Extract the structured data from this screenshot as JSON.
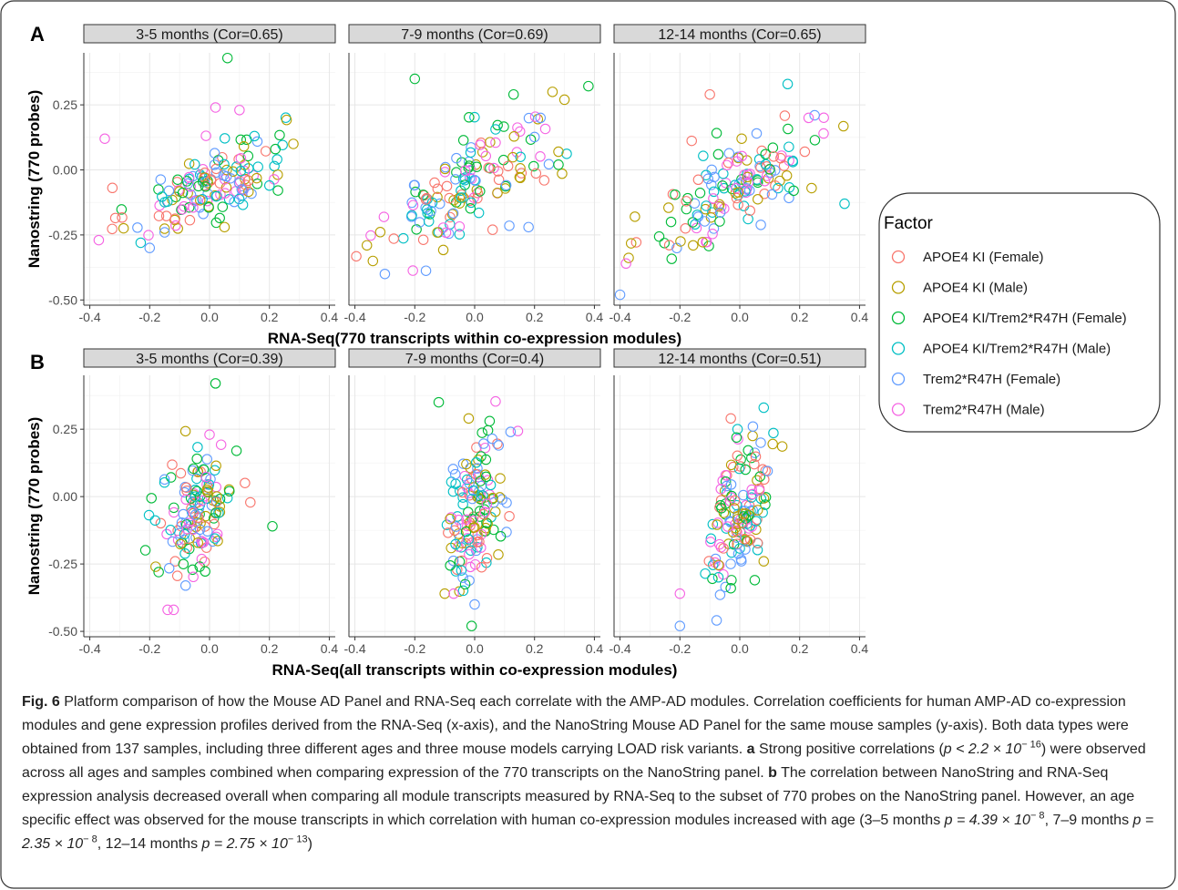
{
  "panels": [
    {
      "label": "A",
      "xlabel": "RNA-Seq(770 transcripts within co-expression modules)",
      "ylabel": "Nanostring (770 probes)",
      "facets": [
        {
          "title": "3-5 months (Cor=0.65)"
        },
        {
          "title": "7-9 months (Cor=0.69)"
        },
        {
          "title": "12-14 months (Cor=0.65)"
        }
      ]
    },
    {
      "label": "B",
      "xlabel": "RNA-Seq(all transcripts within co-expression modules)",
      "ylabel": "Nanostring (770 probes)",
      "facets": [
        {
          "title": "3-5 months (Cor=0.39)"
        },
        {
          "title": "7-9 months (Cor=0.4)"
        },
        {
          "title": "12-14 months (Cor=0.51)"
        }
      ]
    }
  ],
  "legend": {
    "title": "Factor",
    "items": [
      {
        "label": "APOE4 KI (Female)",
        "color": "#F8766D"
      },
      {
        "label": "APOE4 KI (Male)",
        "color": "#B79F00"
      },
      {
        "label": "APOE4 KI/Trem2*R47H (Female)",
        "color": "#00BA38"
      },
      {
        "label": "APOE4 KI/Trem2*R47H (Male)",
        "color": "#00BFC4"
      },
      {
        "label": "Trem2*R47H (Female)",
        "color": "#619CFF"
      },
      {
        "label": "Trem2*R47H (Male)",
        "color": "#F564E3"
      }
    ]
  },
  "chart_data": [
    {
      "type": "scatter",
      "panel": "A",
      "xlim": [
        -0.42,
        0.42
      ],
      "ylim": [
        -0.52,
        0.45
      ],
      "xticks": [
        "-0.4",
        "-0.2",
        "0.0",
        "0.2",
        "0.4"
      ],
      "yticks": [
        "-0.50",
        "-0.25",
        "0.00",
        "0.25"
      ],
      "grid": true,
      "legend_position": "right",
      "facets": [
        {
          "cor": 0.65,
          "points": [
            [
              0.06,
              0.43,
              2
            ],
            [
              -0.35,
              0.12,
              5
            ],
            [
              0.02,
              0.24,
              5
            ],
            [
              0.1,
              0.23,
              5
            ],
            [
              0.28,
              0.1,
              1
            ],
            [
              -0.37,
              -0.27,
              5
            ],
            [
              -0.23,
              -0.28,
              3
            ],
            [
              -0.2,
              -0.3,
              4
            ],
            [
              -0.15,
              -0.24,
              4
            ],
            [
              0.05,
              -0.22,
              1
            ],
            [
              0.2,
              -0.06,
              3
            ],
            [
              0.22,
              0.08,
              2
            ],
            [
              0.15,
              0.13,
              3
            ]
          ]
        },
        {
          "cor": 0.69,
          "points": [
            [
              -0.2,
              0.35,
              2
            ],
            [
              0.26,
              0.3,
              1
            ],
            [
              0.3,
              0.27,
              1
            ],
            [
              0.13,
              0.29,
              2
            ],
            [
              -0.36,
              -0.29,
              1
            ],
            [
              -0.34,
              -0.35,
              1
            ],
            [
              -0.3,
              -0.4,
              4
            ],
            [
              0.22,
              0.2,
              4
            ],
            [
              0.28,
              0.07,
              1
            ],
            [
              0.28,
              0.02,
              2
            ],
            [
              0.18,
              -0.22,
              4
            ],
            [
              0.06,
              -0.23,
              0
            ]
          ]
        },
        {
          "cor": 0.65,
          "points": [
            [
              -0.1,
              0.29,
              0
            ],
            [
              0.16,
              0.33,
              3
            ],
            [
              0.35,
              -0.13,
              3
            ],
            [
              0.28,
              0.14,
              5
            ],
            [
              -0.4,
              -0.48,
              4
            ],
            [
              -0.38,
              -0.36,
              5
            ],
            [
              0.25,
              0.21,
              4
            ],
            [
              0.23,
              0.2,
              5
            ],
            [
              0.18,
              -0.08,
              2
            ],
            [
              0.24,
              -0.07,
              1
            ]
          ]
        }
      ]
    },
    {
      "type": "scatter",
      "panel": "B",
      "xlim": [
        -0.42,
        0.42
      ],
      "ylim": [
        -0.52,
        0.45
      ],
      "xticks": [
        "-0.4",
        "-0.2",
        "0.0",
        "0.2",
        "0.4"
      ],
      "yticks": [
        "-0.50",
        "-0.25",
        "0.00",
        "0.25"
      ],
      "grid": true,
      "facets": [
        {
          "cor": 0.39,
          "points": [
            [
              0.02,
              0.42,
              2
            ],
            [
              0.21,
              -0.11,
              2
            ],
            [
              0.0,
              0.23,
              5
            ],
            [
              -0.14,
              -0.42,
              5
            ],
            [
              -0.12,
              -0.42,
              5
            ],
            [
              -0.18,
              -0.26,
              1
            ],
            [
              -0.17,
              -0.28,
              2
            ],
            [
              -0.08,
              -0.33,
              4
            ],
            [
              0.09,
              0.17,
              2
            ]
          ]
        },
        {
          "cor": 0.4,
          "points": [
            [
              -0.12,
              0.35,
              2
            ],
            [
              -0.02,
              0.29,
              1
            ],
            [
              0.05,
              0.28,
              2
            ],
            [
              0.12,
              0.24,
              4
            ],
            [
              0.0,
              -0.4,
              4
            ],
            [
              -0.1,
              -0.36,
              1
            ],
            [
              -0.07,
              -0.36,
              5
            ],
            [
              0.08,
              0.19,
              4
            ]
          ]
        },
        {
          "cor": 0.51,
          "points": [
            [
              -0.03,
              0.29,
              0
            ],
            [
              0.08,
              0.33,
              3
            ],
            [
              -0.2,
              -0.48,
              4
            ],
            [
              -0.2,
              -0.36,
              5
            ],
            [
              0.05,
              -0.31,
              2
            ],
            [
              -0.03,
              -0.34,
              2
            ],
            [
              0.07,
              0.2,
              4
            ],
            [
              0.08,
              -0.24,
              1
            ],
            [
              0.06,
              -0.05,
              1
            ]
          ]
        }
      ]
    }
  ],
  "caption": {
    "label": "Fig. 6",
    "text1": " Platform comparison of how the Mouse AD Panel and RNA-Seq each correlate with the AMP-AD modules. Correlation coefficients for human AMP-AD co-expression modules and gene expression profiles derived from the RNA-Seq (x-axis), and the NanoString Mouse AD Panel for the same mouse samples (y-axis). Both data types were obtained from 137 samples, including three different ages and three mouse models carrying LOAD risk variants. ",
    "a": "a",
    "text2": " Strong positive correlations (",
    "p1": "p < 2.2 × 10",
    "p1exp": "− 16",
    "text3": ") were observed across all ages and samples combined when comparing expression of the 770 transcripts on the NanoString panel. ",
    "b": "b",
    "text4": " The correlation between NanoString and RNA-Seq expression analysis decreased overall when comparing all module transcripts measured by RNA-Seq to the subset of 770 probes on the NanoString panel. However, an age specific effect was observed for the mouse transcripts in which correlation with human co-expression modules increased with age (3–5 months ",
    "pv1": "p = 4.39 × 10",
    "pv1exp": "− 8",
    "text5": ", 7–9 months ",
    "pv2": "p = 2.35 × 10",
    "pv2exp": "− 8",
    "text6": ", 12–14 months ",
    "pv3": "p = 2.75 × 10",
    "pv3exp": "− 13",
    "text7": ")"
  }
}
